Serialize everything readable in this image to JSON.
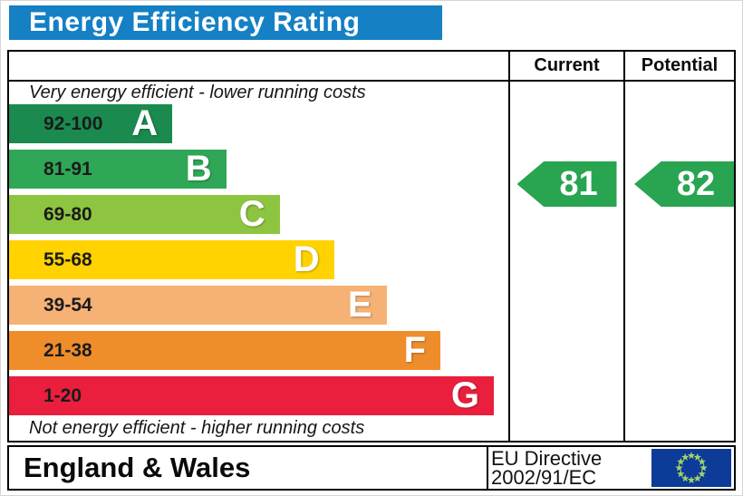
{
  "title": {
    "text": "Energy Efficiency Rating",
    "bg": "#1580c4",
    "fg": "#ffffff"
  },
  "table": {
    "header": {
      "current": "Current",
      "potential": "Potential"
    },
    "top_note": "Very energy efficient - lower running costs",
    "bottom_note": "Not energy efficient - higher running costs",
    "bands": [
      {
        "range": "92-100",
        "letter": "A",
        "color": "#1a8a4f",
        "width_pct": 32.7
      },
      {
        "range": "81-91",
        "letter": "B",
        "color": "#2fa756",
        "width_pct": 43.5
      },
      {
        "range": "69-80",
        "letter": "C",
        "color": "#8ec540",
        "width_pct": 54.2
      },
      {
        "range": "55-68",
        "letter": "D",
        "color": "#ffd200",
        "width_pct": 65.1
      },
      {
        "range": "39-54",
        "letter": "E",
        "color": "#f6b175",
        "width_pct": 75.6
      },
      {
        "range": "21-38",
        "letter": "F",
        "color": "#ef8d2b",
        "width_pct": 86.4
      },
      {
        "range": "1-20",
        "letter": "G",
        "color": "#e91f3d",
        "width_pct": 97.1
      }
    ],
    "current": {
      "value": "81",
      "color": "#29a451"
    },
    "potential": {
      "value": "82",
      "color": "#29a451"
    }
  },
  "footer": {
    "region": "England & Wales",
    "directive_line1": "EU Directive",
    "directive_line2": "2002/91/EC",
    "flag": {
      "bg": "#0c3b98",
      "star_color": "#9fd36b",
      "star_count": 12
    }
  },
  "chart_data": {
    "type": "bar",
    "title": "Energy Efficiency Rating",
    "categories": [
      "A",
      "B",
      "C",
      "D",
      "E",
      "F",
      "G"
    ],
    "band_ranges": [
      "92-100",
      "81-91",
      "69-80",
      "55-68",
      "39-54",
      "21-38",
      "1-20"
    ],
    "band_colors": [
      "#1a8a4f",
      "#2fa756",
      "#8ec540",
      "#ffd200",
      "#f6b175",
      "#ef8d2b",
      "#e91f3d"
    ],
    "bar_width_pct": [
      32.7,
      43.5,
      54.2,
      65.1,
      75.6,
      86.4,
      97.1
    ],
    "series": [
      {
        "name": "Current",
        "values": [
          81
        ],
        "band": "B"
      },
      {
        "name": "Potential",
        "values": [
          82
        ],
        "band": "B"
      }
    ],
    "annotations": [
      "Very energy efficient - lower running costs",
      "Not energy efficient - higher running costs"
    ],
    "footer_labels": [
      "England & Wales",
      "EU Directive 2002/91/EC"
    ],
    "legend_position": "none",
    "grid": false
  }
}
